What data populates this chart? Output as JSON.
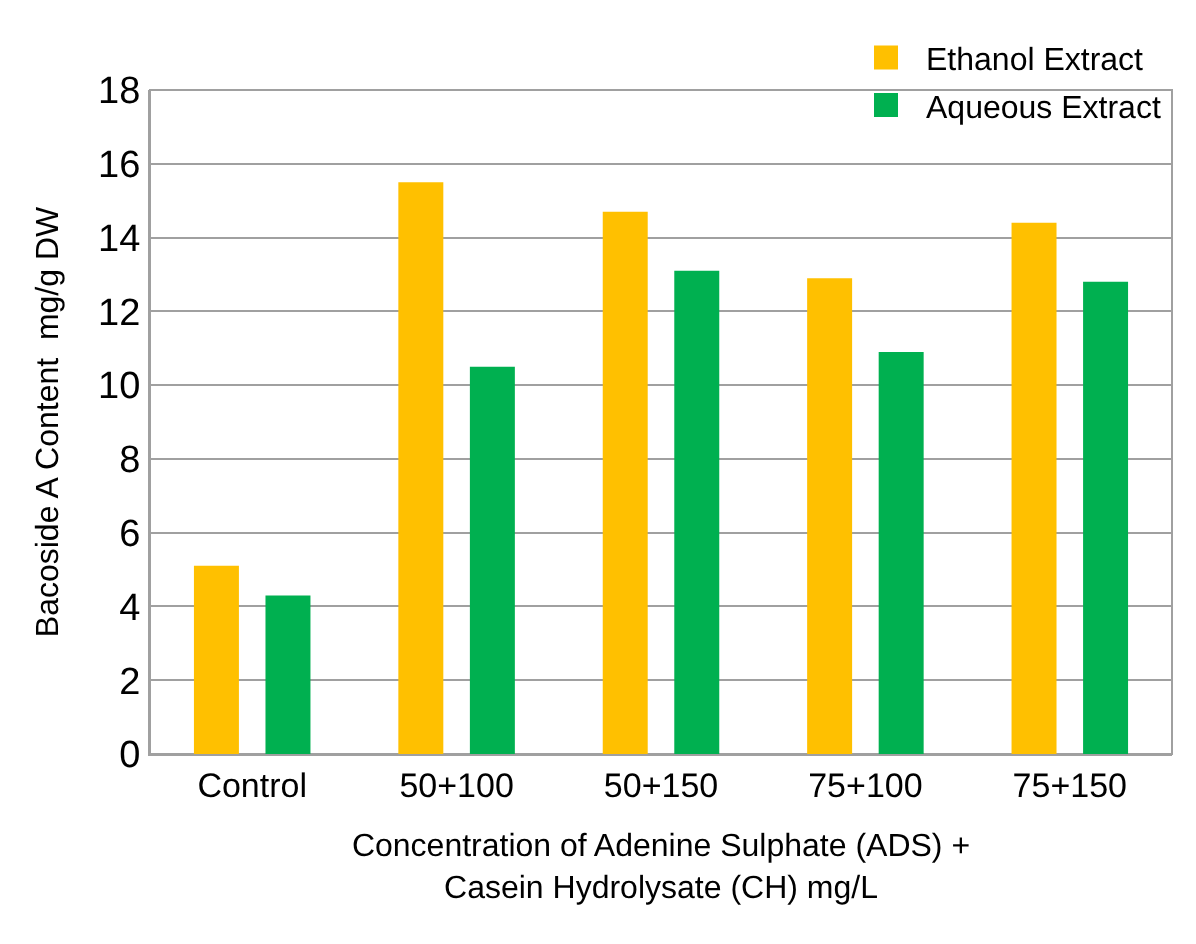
{
  "chart_data": {
    "type": "bar",
    "xlabel": "Concentration of Adenine Sulphate (ADS) + Casein Hydrolysate (CH) mg/L",
    "ylabel": "Bacoside A Content  mg/g DW",
    "categories": [
      "Control",
      "50+100",
      "50+150",
      "75+100",
      "75+150"
    ],
    "series": [
      {
        "name": "Ethanol Extract",
        "color": "#ffc000",
        "values": [
          5.1,
          15.5,
          14.7,
          12.9,
          14.4
        ]
      },
      {
        "name": "Aqueous Extract",
        "color": "#00b050",
        "values": [
          4.3,
          10.5,
          13.1,
          10.9,
          12.8
        ]
      }
    ],
    "ylim": [
      0,
      18
    ],
    "yticks": [
      0,
      2,
      4,
      6,
      8,
      10,
      12,
      14,
      16,
      18
    ],
    "grid": "y",
    "legend": "top right"
  }
}
